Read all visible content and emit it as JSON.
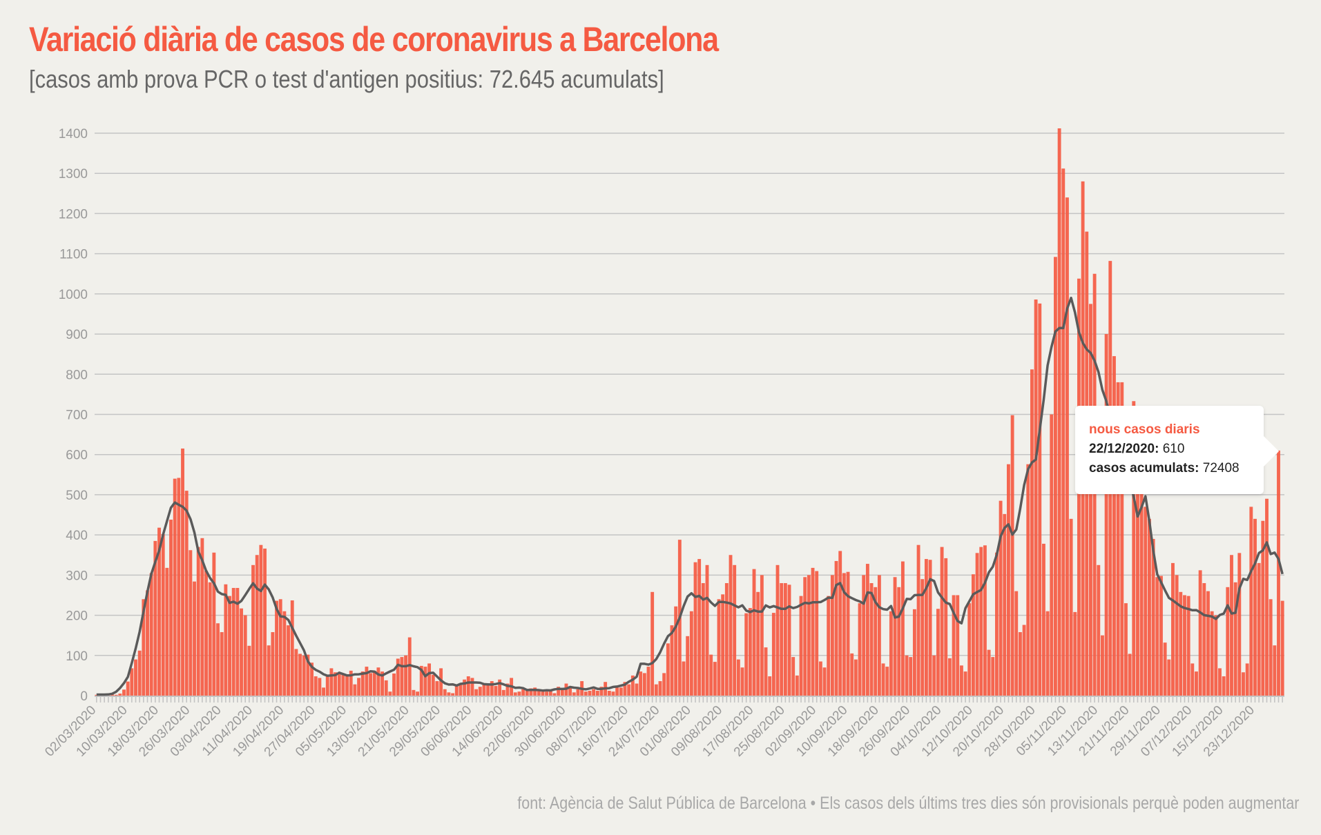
{
  "header": {
    "title": "Variació diària de casos de coronavirus a Barcelona",
    "subtitle": "[casos amb prova PCR o test d'antigen positius: 72.645 acumulats]"
  },
  "footer": "font: Agència de Salut Pública de Barcelona • Els casos dels últims tres dies són provisionals perquè poden augmentar",
  "tooltip": {
    "title": "nous casos diaris",
    "date_label": "22/12/2020:",
    "date_value": "610",
    "acc_label": "casos acumulats:",
    "acc_value": "72408"
  },
  "colors": {
    "bar": "#f55a42",
    "line": "#5a5a5a",
    "title": "#f55a42",
    "grid": "#c4c4c4"
  },
  "chart_data": {
    "type": "bar",
    "title": "Variació diària de casos de coronavirus a Barcelona",
    "start_date": "02/03/2020",
    "end_date": "23/12/2020",
    "ylim": [
      0,
      1400
    ],
    "yticks": [
      0,
      100,
      200,
      300,
      400,
      500,
      600,
      700,
      800,
      900,
      1000,
      1100,
      1200,
      1300,
      1400
    ],
    "xtick_labels": [
      "02/03/2020",
      "10/03/2020",
      "18/03/2020",
      "26/03/2020",
      "03/04/2020",
      "11/04/2020",
      "19/04/2020",
      "27/04/2020",
      "05/05/2020",
      "13/05/2020",
      "21/05/2020",
      "29/05/2020",
      "06/06/2020",
      "14/06/2020",
      "22/06/2020",
      "30/06/2020",
      "08/07/2020",
      "16/07/2020",
      "24/07/2020",
      "01/08/2020",
      "09/08/2020",
      "17/08/2020",
      "25/08/2020",
      "02/09/2020",
      "10/09/2020",
      "18/09/2020",
      "26/09/2020",
      "04/10/2020",
      "12/10/2020",
      "20/10/2020",
      "28/10/2020",
      "05/11/2020",
      "13/11/2020",
      "21/11/2020",
      "29/11/2020",
      "07/12/2020",
      "15/12/2020",
      "23/12/2020"
    ],
    "grid": true,
    "series": [
      {
        "name": "nous casos diaris",
        "type": "bar",
        "values": [
          2,
          1,
          3,
          4,
          3,
          2,
          5,
          15,
          35,
          68,
          90,
          112,
          240,
          262,
          305,
          385,
          418,
          402,
          318,
          438,
          540,
          542,
          615,
          510,
          362,
          284,
          370,
          392,
          311,
          282,
          356,
          180,
          158,
          277,
          248,
          268,
          268,
          217,
          200,
          124,
          325,
          350,
          375,
          366,
          125,
          158,
          236,
          240,
          210,
          175,
          237,
          116,
          104,
          100,
          102,
          82,
          48,
          44,
          20,
          52,
          68,
          58,
          55,
          54,
          50,
          62,
          28,
          44,
          60,
          72,
          56,
          62,
          70,
          60,
          38,
          10,
          55,
          92,
          96,
          100,
          145,
          14,
          10,
          74,
          72,
          80,
          52,
          36,
          68,
          16,
          8,
          6,
          28,
          30,
          40,
          48,
          44,
          16,
          22,
          28,
          30,
          36,
          24,
          40,
          14,
          30,
          44,
          8,
          10,
          16,
          14,
          18,
          20,
          12,
          10,
          10,
          12,
          6,
          22,
          18,
          30,
          20,
          8,
          16,
          36,
          10,
          12,
          16,
          12,
          22,
          34,
          12,
          10,
          20,
          20,
          34,
          28,
          50,
          30,
          60,
          56,
          72,
          258,
          28,
          36,
          56,
          130,
          175,
          222,
          388,
          85,
          148,
          210,
          332,
          340,
          280,
          325,
          102,
          84,
          240,
          252,
          280,
          350,
          325,
          90,
          70,
          205,
          218,
          315,
          258,
          300,
          120,
          48,
          206,
          325,
          280,
          280,
          276,
          96,
          50,
          248,
          295,
          300,
          318,
          310,
          85,
          70,
          248,
          300,
          335,
          360,
          305,
          308,
          105,
          90,
          230,
          300,
          328,
          280,
          270,
          300,
          80,
          72,
          210,
          295,
          270,
          334,
          100,
          96,
          215,
          375,
          290,
          340,
          338,
          100,
          216,
          370,
          342,
          93,
          250,
          250,
          75,
          60,
          230,
          302,
          355,
          370,
          374,
          114,
          96,
          356,
          485,
          452,
          576,
          698,
          260,
          158,
          176,
          576,
          812,
          986,
          976,
          378,
          210,
          700,
          1092,
          1412,
          1312,
          1240,
          440,
          208,
          1038,
          1280,
          1155,
          975,
          1050,
          325,
          150,
          900,
          1082,
          845,
          780,
          780,
          230,
          104,
          733,
          640,
          505,
          470,
          440,
          390,
          295,
          298,
          132,
          90,
          330,
          300,
          258,
          250,
          248,
          80,
          60,
          312,
          280,
          260,
          210,
          200,
          68,
          48,
          270,
          350,
          282,
          355,
          58,
          80,
          470,
          440,
          330,
          435,
          490,
          240,
          125,
          610,
          236
        ]
      }
    ]
  }
}
